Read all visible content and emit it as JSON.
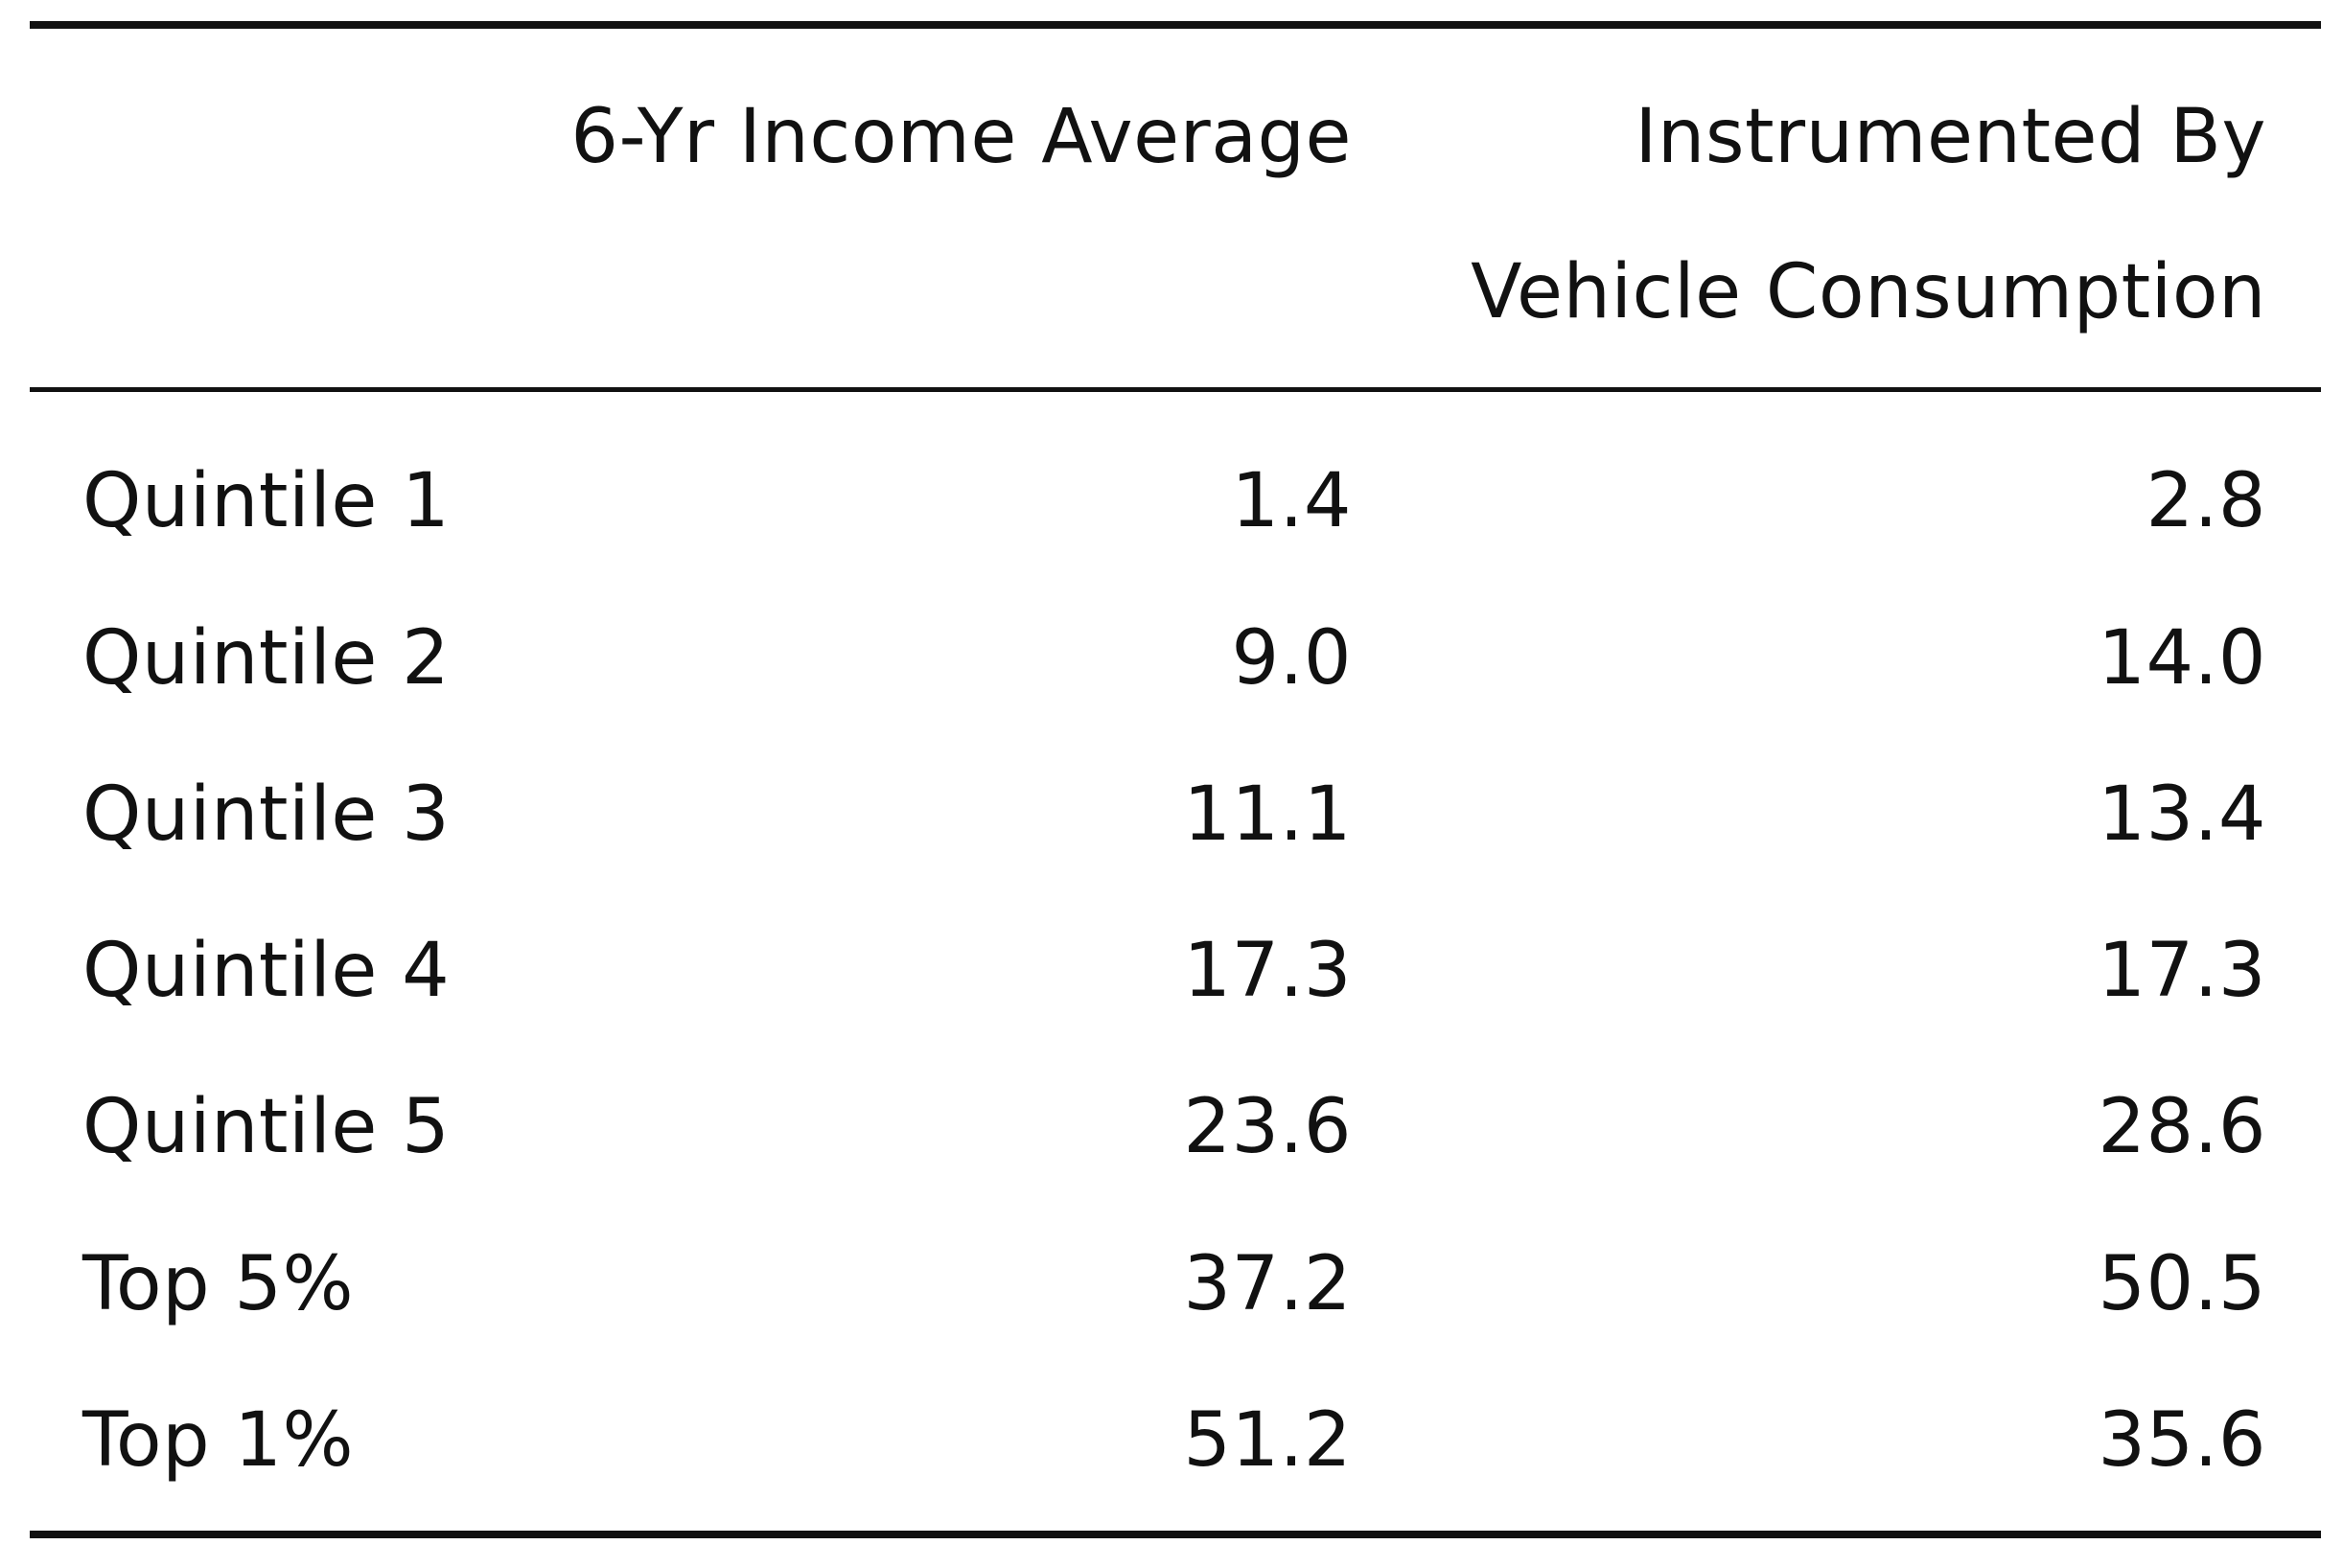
{
  "table": {
    "headers": {
      "col1": "6-Yr Income Average",
      "col2_line1": "Instrumented By",
      "col2_line2": "Vehicle Consumption"
    },
    "rows": [
      {
        "label": "Quintile 1",
        "income_avg": "1.4",
        "instrumented": "2.8"
      },
      {
        "label": "Quintile 2",
        "income_avg": "9.0",
        "instrumented": "14.0"
      },
      {
        "label": "Quintile 3",
        "income_avg": "11.1",
        "instrumented": "13.4"
      },
      {
        "label": "Quintile 4",
        "income_avg": "17.3",
        "instrumented": "17.3"
      },
      {
        "label": "Quintile 5",
        "income_avg": "23.6",
        "instrumented": "28.6"
      },
      {
        "label": "Top 5%",
        "income_avg": "37.2",
        "instrumented": "50.5"
      },
      {
        "label": "Top 1%",
        "income_avg": "51.2",
        "instrumented": "35.6"
      }
    ]
  }
}
